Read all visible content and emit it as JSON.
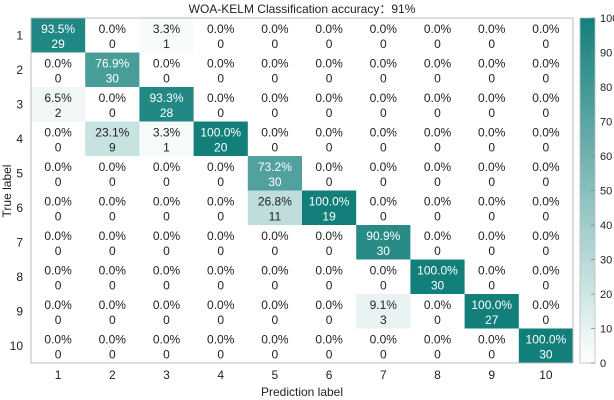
{
  "chart_data": {
    "type": "heatmap",
    "title": "WOA-KELM Classification accuracy：91%",
    "xlabel": "Prediction label",
    "ylabel": "True label",
    "x_categories": [
      "1",
      "2",
      "3",
      "4",
      "5",
      "6",
      "7",
      "8",
      "9",
      "10"
    ],
    "y_categories": [
      "1",
      "2",
      "3",
      "4",
      "5",
      "6",
      "7",
      "8",
      "9",
      "10"
    ],
    "counts": [
      [
        29,
        0,
        1,
        0,
        0,
        0,
        0,
        0,
        0,
        0
      ],
      [
        0,
        30,
        0,
        0,
        0,
        0,
        0,
        0,
        0,
        0
      ],
      [
        2,
        0,
        28,
        0,
        0,
        0,
        0,
        0,
        0,
        0
      ],
      [
        0,
        9,
        1,
        20,
        0,
        0,
        0,
        0,
        0,
        0
      ],
      [
        0,
        0,
        0,
        0,
        30,
        0,
        0,
        0,
        0,
        0
      ],
      [
        0,
        0,
        0,
        0,
        11,
        19,
        0,
        0,
        0,
        0
      ],
      [
        0,
        0,
        0,
        0,
        0,
        0,
        30,
        0,
        0,
        0
      ],
      [
        0,
        0,
        0,
        0,
        0,
        0,
        0,
        30,
        0,
        0
      ],
      [
        0,
        0,
        0,
        0,
        0,
        0,
        3,
        0,
        27,
        0
      ],
      [
        0,
        0,
        0,
        0,
        0,
        0,
        0,
        0,
        0,
        30
      ]
    ],
    "percentages": [
      [
        "93.5%",
        "0.0%",
        "3.3%",
        "0.0%",
        "0.0%",
        "0.0%",
        "0.0%",
        "0.0%",
        "0.0%",
        "0.0%"
      ],
      [
        "0.0%",
        "76.9%",
        "0.0%",
        "0.0%",
        "0.0%",
        "0.0%",
        "0.0%",
        "0.0%",
        "0.0%",
        "0.0%"
      ],
      [
        "6.5%",
        "0.0%",
        "93.3%",
        "0.0%",
        "0.0%",
        "0.0%",
        "0.0%",
        "0.0%",
        "0.0%",
        "0.0%"
      ],
      [
        "0.0%",
        "23.1%",
        "3.3%",
        "100.0%",
        "0.0%",
        "0.0%",
        "0.0%",
        "0.0%",
        "0.0%",
        "0.0%"
      ],
      [
        "0.0%",
        "0.0%",
        "0.0%",
        "0.0%",
        "73.2%",
        "0.0%",
        "0.0%",
        "0.0%",
        "0.0%",
        "0.0%"
      ],
      [
        "0.0%",
        "0.0%",
        "0.0%",
        "0.0%",
        "26.8%",
        "100.0%",
        "0.0%",
        "0.0%",
        "0.0%",
        "0.0%"
      ],
      [
        "0.0%",
        "0.0%",
        "0.0%",
        "0.0%",
        "0.0%",
        "0.0%",
        "90.9%",
        "0.0%",
        "0.0%",
        "0.0%"
      ],
      [
        "0.0%",
        "0.0%",
        "0.0%",
        "0.0%",
        "0.0%",
        "0.0%",
        "0.0%",
        "100.0%",
        "0.0%",
        "0.0%"
      ],
      [
        "0.0%",
        "0.0%",
        "0.0%",
        "0.0%",
        "0.0%",
        "0.0%",
        "9.1%",
        "0.0%",
        "100.0%",
        "0.0%"
      ],
      [
        "0.0%",
        "0.0%",
        "0.0%",
        "0.0%",
        "0.0%",
        "0.0%",
        "0.0%",
        "0.0%",
        "0.0%",
        "100.0%"
      ]
    ],
    "colorbar": {
      "range": [
        0,
        100
      ],
      "ticks": [
        "0",
        "10",
        "20",
        "30",
        "40",
        "50",
        "60",
        "70",
        "80",
        "90",
        "100"
      ]
    },
    "colors": {
      "low": "#ffffff",
      "high": "#127f7b"
    },
    "grid": false
  }
}
